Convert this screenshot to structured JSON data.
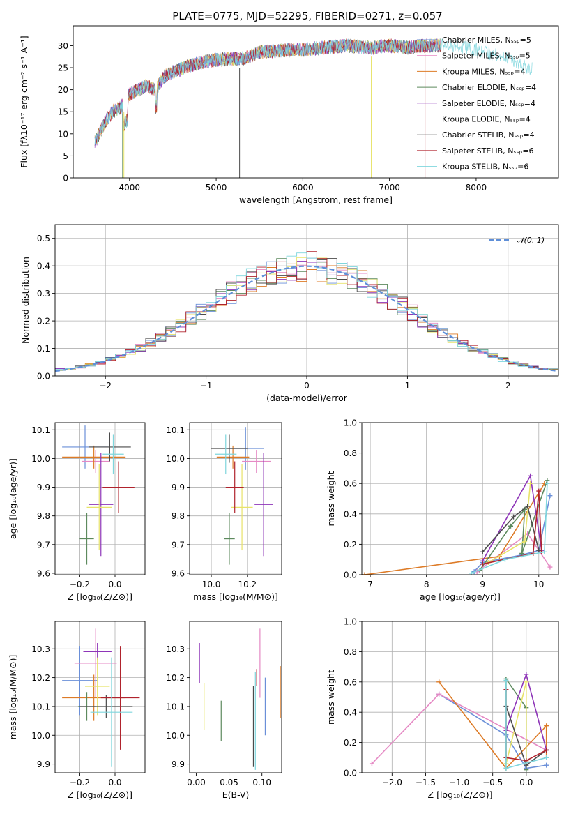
{
  "figure_title": "PLATE=0775, MJD=52295, FIBERID=0271, z=0.057",
  "series_colors": [
    "#6a8fd8",
    "#e589c4",
    "#dd7b27",
    "#5d8a5e",
    "#8e35b8",
    "#e8e36a",
    "#4b4b4b",
    "#b0232d",
    "#7fd6dd"
  ],
  "chart_data": [
    {
      "id": "spectrum",
      "type": "line",
      "xlabel": "wavelength [Angstrom, rest frame]",
      "ylabel": "Flux [fλ10⁻¹⁷ erg cm⁻² s⁻¹ A⁻¹]",
      "xlim": [
        3350,
        8950
      ],
      "ylim": [
        0,
        34.5
      ],
      "xticks": [
        4000,
        5000,
        6000,
        7000,
        8000
      ],
      "yticks": [
        0,
        5,
        10,
        15,
        20,
        25,
        30
      ],
      "grid": false,
      "legend_position": "right",
      "legend": [
        "Chabrier MILES, Nₛₛₚ=5",
        "Salpeter MILES, Nₛₛₚ=5",
        "Kroupa MILES, Nₛₛₚ=4",
        "Chabrier ELODIE, Nₛₛₚ=4",
        "Salpeter ELODIE, Nₛₛₚ=4",
        "Kroupa ELODIE, Nₛₛₚ=4",
        "Chabrier STELIB, Nₛₛₚ=4",
        "Salpeter STELIB, Nₛₛₚ=6",
        "Kroupa STELIB, Nₛₛₚ=6"
      ],
      "continuum": [
        [
          3600,
          8
        ],
        [
          3700,
          12
        ],
        [
          3800,
          15
        ],
        [
          3900,
          16
        ],
        [
          4000,
          19
        ],
        [
          4100,
          20
        ],
        [
          4200,
          21
        ],
        [
          4300,
          20
        ],
        [
          4400,
          23
        ],
        [
          4500,
          24
        ],
        [
          4700,
          25.5
        ],
        [
          4900,
          26.5
        ],
        [
          5100,
          27
        ],
        [
          5300,
          27
        ],
        [
          5500,
          28.5
        ],
        [
          5800,
          29
        ],
        [
          6000,
          29
        ],
        [
          6200,
          29.5
        ],
        [
          6500,
          30
        ],
        [
          6800,
          29.5
        ],
        [
          7000,
          30
        ],
        [
          7200,
          29.5
        ],
        [
          7400,
          30
        ],
        [
          7600,
          30
        ],
        [
          7800,
          30
        ],
        [
          8000,
          29
        ],
        [
          8200,
          28
        ],
        [
          8400,
          27
        ],
        [
          8600,
          25
        ]
      ],
      "tail_window_A": [
        7600,
        8650
      ]
    },
    {
      "id": "residuals",
      "type": "histogram",
      "xlabel": "(data-model)/error",
      "ylabel": "Normed distribution",
      "xlim": [
        -2.5,
        2.5
      ],
      "ylim": [
        0,
        0.55
      ],
      "xticks": [
        -2,
        -1,
        0,
        1,
        2
      ],
      "yticks": [
        0.0,
        0.1,
        0.2,
        0.3,
        0.4,
        0.5
      ],
      "grid": true,
      "bin_width": 0.1,
      "legend": [
        "𝒩(0, 1)"
      ],
      "legend_position": "top-right",
      "reference_curve": "normal(0,1)"
    },
    {
      "id": "z_age",
      "type": "scatter",
      "xlabel": "Z [log₁₀(Z/Z⊙)]",
      "ylabel": "age  [log₁₀(age/yr)]",
      "xlim": [
        -0.34,
        0.17
      ],
      "ylim": [
        9.595,
        10.125
      ],
      "xticks": [
        -0.2,
        0.0
      ],
      "yticks": [
        9.6,
        9.7,
        9.8,
        9.9,
        10.0,
        10.1
      ],
      "grid": true,
      "points": [
        {
          "x": -0.17,
          "y": 10.04,
          "ex": 0.13,
          "ey": 0.075
        },
        {
          "x": -0.11,
          "y": 9.99,
          "ex": 0.08,
          "ey": 0.04
        },
        {
          "x": -0.12,
          "y": 10.005,
          "ex": 0.18,
          "ey": 0.04
        },
        {
          "x": -0.16,
          "y": 9.72,
          "ex": 0.04,
          "ey": 0.09
        },
        {
          "x": -0.08,
          "y": 9.84,
          "ex": 0.07,
          "ey": 0.18
        },
        {
          "x": -0.09,
          "y": 9.83,
          "ex": 0.07,
          "ey": 0.15
        },
        {
          "x": -0.03,
          "y": 10.04,
          "ex": 0.12,
          "ey": 0.05
        },
        {
          "x": 0.02,
          "y": 9.9,
          "ex": 0.09,
          "ey": 0.09
        },
        {
          "x": -0.01,
          "y": 10.015,
          "ex": 0.06,
          "ey": 0.07
        }
      ]
    },
    {
      "id": "mass_age",
      "type": "scatter",
      "xlabel": "mass [log₁₀(M/M⊙)]",
      "ylabel": "",
      "xlim": [
        9.88,
        10.39
      ],
      "ylim": [
        9.595,
        10.125
      ],
      "xticks": [
        10.0,
        10.2
      ],
      "yticks": [
        9.6,
        9.7,
        9.8,
        9.9,
        10.0,
        10.1
      ],
      "grid": true,
      "points": [
        {
          "x": 10.19,
          "y": 10.035,
          "ex": 0.1,
          "ey": 0.075
        },
        {
          "x": 10.25,
          "y": 9.99,
          "ex": 0.08,
          "ey": 0.04
        },
        {
          "x": 10.12,
          "y": 10.005,
          "ex": 0.09,
          "ey": 0.04
        },
        {
          "x": 10.1,
          "y": 9.72,
          "ex": 0.03,
          "ey": 0.09
        },
        {
          "x": 10.29,
          "y": 9.84,
          "ex": 0.05,
          "ey": 0.18
        },
        {
          "x": 10.17,
          "y": 9.83,
          "ex": 0.06,
          "ey": 0.15
        },
        {
          "x": 10.1,
          "y": 10.035,
          "ex": 0.1,
          "ey": 0.05
        },
        {
          "x": 10.13,
          "y": 9.9,
          "ex": 0.05,
          "ey": 0.09
        },
        {
          "x": 10.08,
          "y": 10.015,
          "ex": 0.06,
          "ey": 0.07
        }
      ]
    },
    {
      "id": "age_weight",
      "type": "line",
      "xlabel": "age  [log₁₀(age/yr)]",
      "ylabel": "mass weight",
      "xlim": [
        6.85,
        10.35
      ],
      "ylim": [
        0,
        1
      ],
      "xticks": [
        7,
        8,
        9,
        10
      ],
      "yticks": [
        0.0,
        0.2,
        0.4,
        0.6,
        0.8,
        1.0
      ],
      "grid": true,
      "series": [
        {
          "values": [
            [
              8.85,
              0.02
            ],
            [
              9.0,
              0.08
            ],
            [
              9.7,
              0.13
            ],
            [
              10.0,
              0.16
            ],
            [
              10.2,
              0.52
            ]
          ]
        },
        {
          "values": [
            [
              8.9,
              0.02
            ],
            [
              9.8,
              0.27
            ],
            [
              10.2,
              0.05
            ]
          ]
        },
        {
          "values": [
            [
              6.9,
              0.0
            ],
            [
              9.3,
              0.12
            ],
            [
              10.1,
              0.6
            ]
          ]
        },
        {
          "values": [
            [
              8.95,
              0.03
            ],
            [
              9.5,
              0.32
            ],
            [
              9.75,
              0.43
            ],
            [
              9.7,
              0.14
            ],
            [
              10.15,
              0.62
            ]
          ]
        },
        {
          "values": [
            [
              9.0,
              0.09
            ],
            [
              9.85,
              0.65
            ],
            [
              10.05,
              0.16
            ]
          ]
        },
        {
          "values": [
            [
              9.1,
              0.08
            ],
            [
              9.75,
              0.22
            ],
            [
              9.85,
              0.6
            ]
          ]
        },
        {
          "values": [
            [
              9.0,
              0.15
            ],
            [
              9.55,
              0.38
            ],
            [
              9.8,
              0.45
            ],
            [
              10.0,
              0.16
            ]
          ]
        },
        {
          "values": [
            [
              9.0,
              0.07
            ],
            [
              9.9,
              0.14
            ],
            [
              10.0,
              0.55
            ],
            [
              10.05,
              0.15
            ]
          ]
        },
        {
          "values": [
            [
              8.8,
              0.01
            ],
            [
              9.4,
              0.1
            ],
            [
              10.1,
              0.15
            ],
            [
              10.15,
              0.6
            ]
          ]
        }
      ]
    },
    {
      "id": "z_mass",
      "type": "scatter",
      "xlabel": "Z [log₁₀(Z/Z⊙)]",
      "ylabel": "mass [log₁₀(M/M⊙)]",
      "xlim": [
        -0.34,
        0.17
      ],
      "ylim": [
        9.87,
        10.395
      ],
      "xticks": [
        -0.2,
        0.0
      ],
      "yticks": [
        9.9,
        10.0,
        10.1,
        10.2,
        10.3
      ],
      "grid": true,
      "points": [
        {
          "x": -0.2,
          "y": 10.19,
          "ex": 0.1,
          "ey": 0.12
        },
        {
          "x": -0.11,
          "y": 10.25,
          "ex": 0.12,
          "ey": 0.12
        },
        {
          "x": -0.12,
          "y": 10.13,
          "ex": 0.18,
          "ey": 0.08
        },
        {
          "x": -0.16,
          "y": 10.1,
          "ex": 0.05,
          "ey": 0.05
        },
        {
          "x": -0.1,
          "y": 10.29,
          "ex": 0.08,
          "ey": 0.03
        },
        {
          "x": -0.1,
          "y": 10.17,
          "ex": 0.07,
          "ey": 0.1
        },
        {
          "x": -0.05,
          "y": 10.1,
          "ex": 0.15,
          "ey": 0.04
        },
        {
          "x": 0.03,
          "y": 10.13,
          "ex": 0.11,
          "ey": 0.18
        },
        {
          "x": -0.02,
          "y": 10.08,
          "ex": 0.12,
          "ey": 0.19
        }
      ]
    },
    {
      "id": "ebv_mass",
      "type": "scatter",
      "xlabel": "E(B-V)",
      "ylabel": "",
      "xlim": [
        -0.01,
        0.13
      ],
      "ylim": [
        9.87,
        10.395
      ],
      "xticks": [
        0.0,
        0.05,
        0.1
      ],
      "yticks": [
        9.9,
        10.0,
        10.1,
        10.2,
        10.3
      ],
      "grid": false,
      "points": [
        {
          "x": 0.105,
          "y": 10.1,
          "ex": 0,
          "ey": 0.1
        },
        {
          "x": 0.097,
          "y": 10.25,
          "ex": 0,
          "ey": 0.12
        },
        {
          "x": 0.128,
          "y": 10.15,
          "ex": 0,
          "ey": 0.09
        },
        {
          "x": 0.038,
          "y": 10.05,
          "ex": 0,
          "ey": 0.07
        },
        {
          "x": 0.005,
          "y": 10.25,
          "ex": 0,
          "ey": 0.07
        },
        {
          "x": 0.012,
          "y": 10.1,
          "ex": 0,
          "ey": 0.08
        },
        {
          "x": 0.087,
          "y": 10.03,
          "ex": 0,
          "ey": 0.14
        },
        {
          "x": 0.092,
          "y": 10.2,
          "ex": 0,
          "ey": 0.03
        },
        {
          "x": 0.09,
          "y": 10.05,
          "ex": 0,
          "ey": 0.17
        }
      ]
    },
    {
      "id": "z_weight",
      "type": "line",
      "xlabel": "Z [log₁₀(Z/Z⊙)]",
      "ylabel": "mass weight",
      "xlim": [
        -2.45,
        0.48
      ],
      "ylim": [
        0,
        1
      ],
      "xticks": [
        -2.0,
        -1.5,
        -1.0,
        -0.5,
        0.0
      ],
      "yticks": [
        0.0,
        0.2,
        0.4,
        0.6,
        0.8,
        1.0
      ],
      "grid": true,
      "series": [
        {
          "values": [
            [
              -1.3,
              0.52
            ],
            [
              -0.3,
              0.25
            ],
            [
              0.0,
              0.03
            ],
            [
              0.3,
              0.05
            ]
          ]
        },
        {
          "values": [
            [
              -2.3,
              0.06
            ],
            [
              -1.3,
              0.52
            ],
            [
              0.3,
              0.15
            ]
          ]
        },
        {
          "values": [
            [
              -1.3,
              0.6
            ],
            [
              -0.3,
              0.03
            ],
            [
              0.3,
              0.31
            ],
            [
              0.3,
              0.1
            ]
          ]
        },
        {
          "values": [
            [
              -0.3,
              0.1
            ],
            [
              -0.3,
              0.62
            ],
            [
              0.0,
              0.43
            ],
            [
              0.0,
              0.02
            ]
          ]
        },
        {
          "values": [
            [
              -0.3,
              0.28
            ],
            [
              0.0,
              0.65
            ],
            [
              0.3,
              0.15
            ]
          ]
        },
        {
          "values": [
            [
              -0.3,
              0.06
            ],
            [
              0.0,
              0.6
            ],
            [
              0.0,
              0.08
            ]
          ]
        },
        {
          "values": [
            [
              -0.3,
              0.44
            ],
            [
              0.0,
              0.05
            ],
            [
              0.3,
              0.15
            ]
          ]
        },
        {
          "values": [
            [
              -0.3,
              0.55
            ],
            [
              -0.3,
              0.1
            ],
            [
              0.0,
              0.08
            ],
            [
              0.3,
              0.15
            ]
          ]
        },
        {
          "values": [
            [
              -0.3,
              0.61
            ],
            [
              -0.3,
              0.03
            ],
            [
              0.3,
              0.1
            ]
          ]
        }
      ]
    }
  ]
}
